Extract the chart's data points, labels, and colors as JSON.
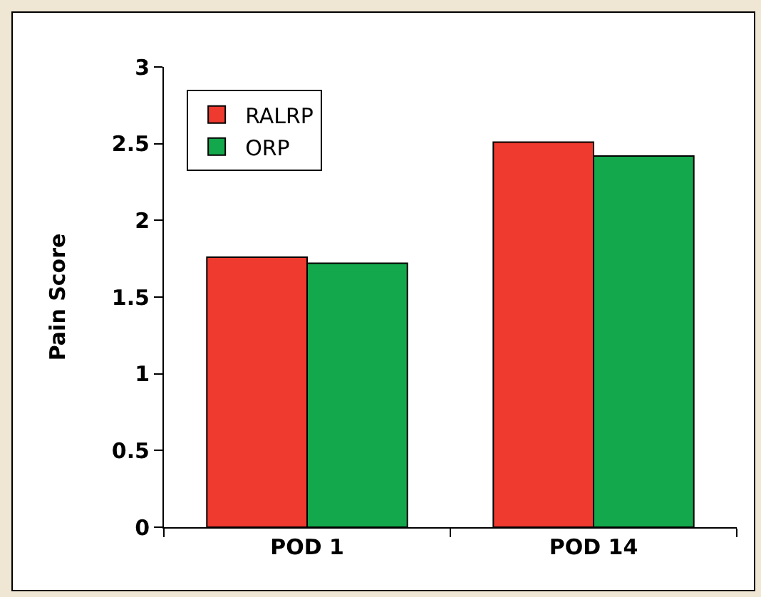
{
  "chart_data": {
    "type": "bar",
    "ylabel": "Pain Score",
    "categories": [
      "POD 1",
      "POD 14"
    ],
    "series": [
      {
        "name": "RALRP",
        "color": "#ee3a2f",
        "values": [
          1.76,
          2.51
        ]
      },
      {
        "name": "ORP",
        "color": "#13a84c",
        "values": [
          1.72,
          2.42
        ]
      }
    ],
    "ylim": [
      0,
      3
    ],
    "yticks": [
      0,
      0.5,
      1,
      1.5,
      2,
      2.5,
      3
    ],
    "grid": false,
    "legend": "top left"
  }
}
